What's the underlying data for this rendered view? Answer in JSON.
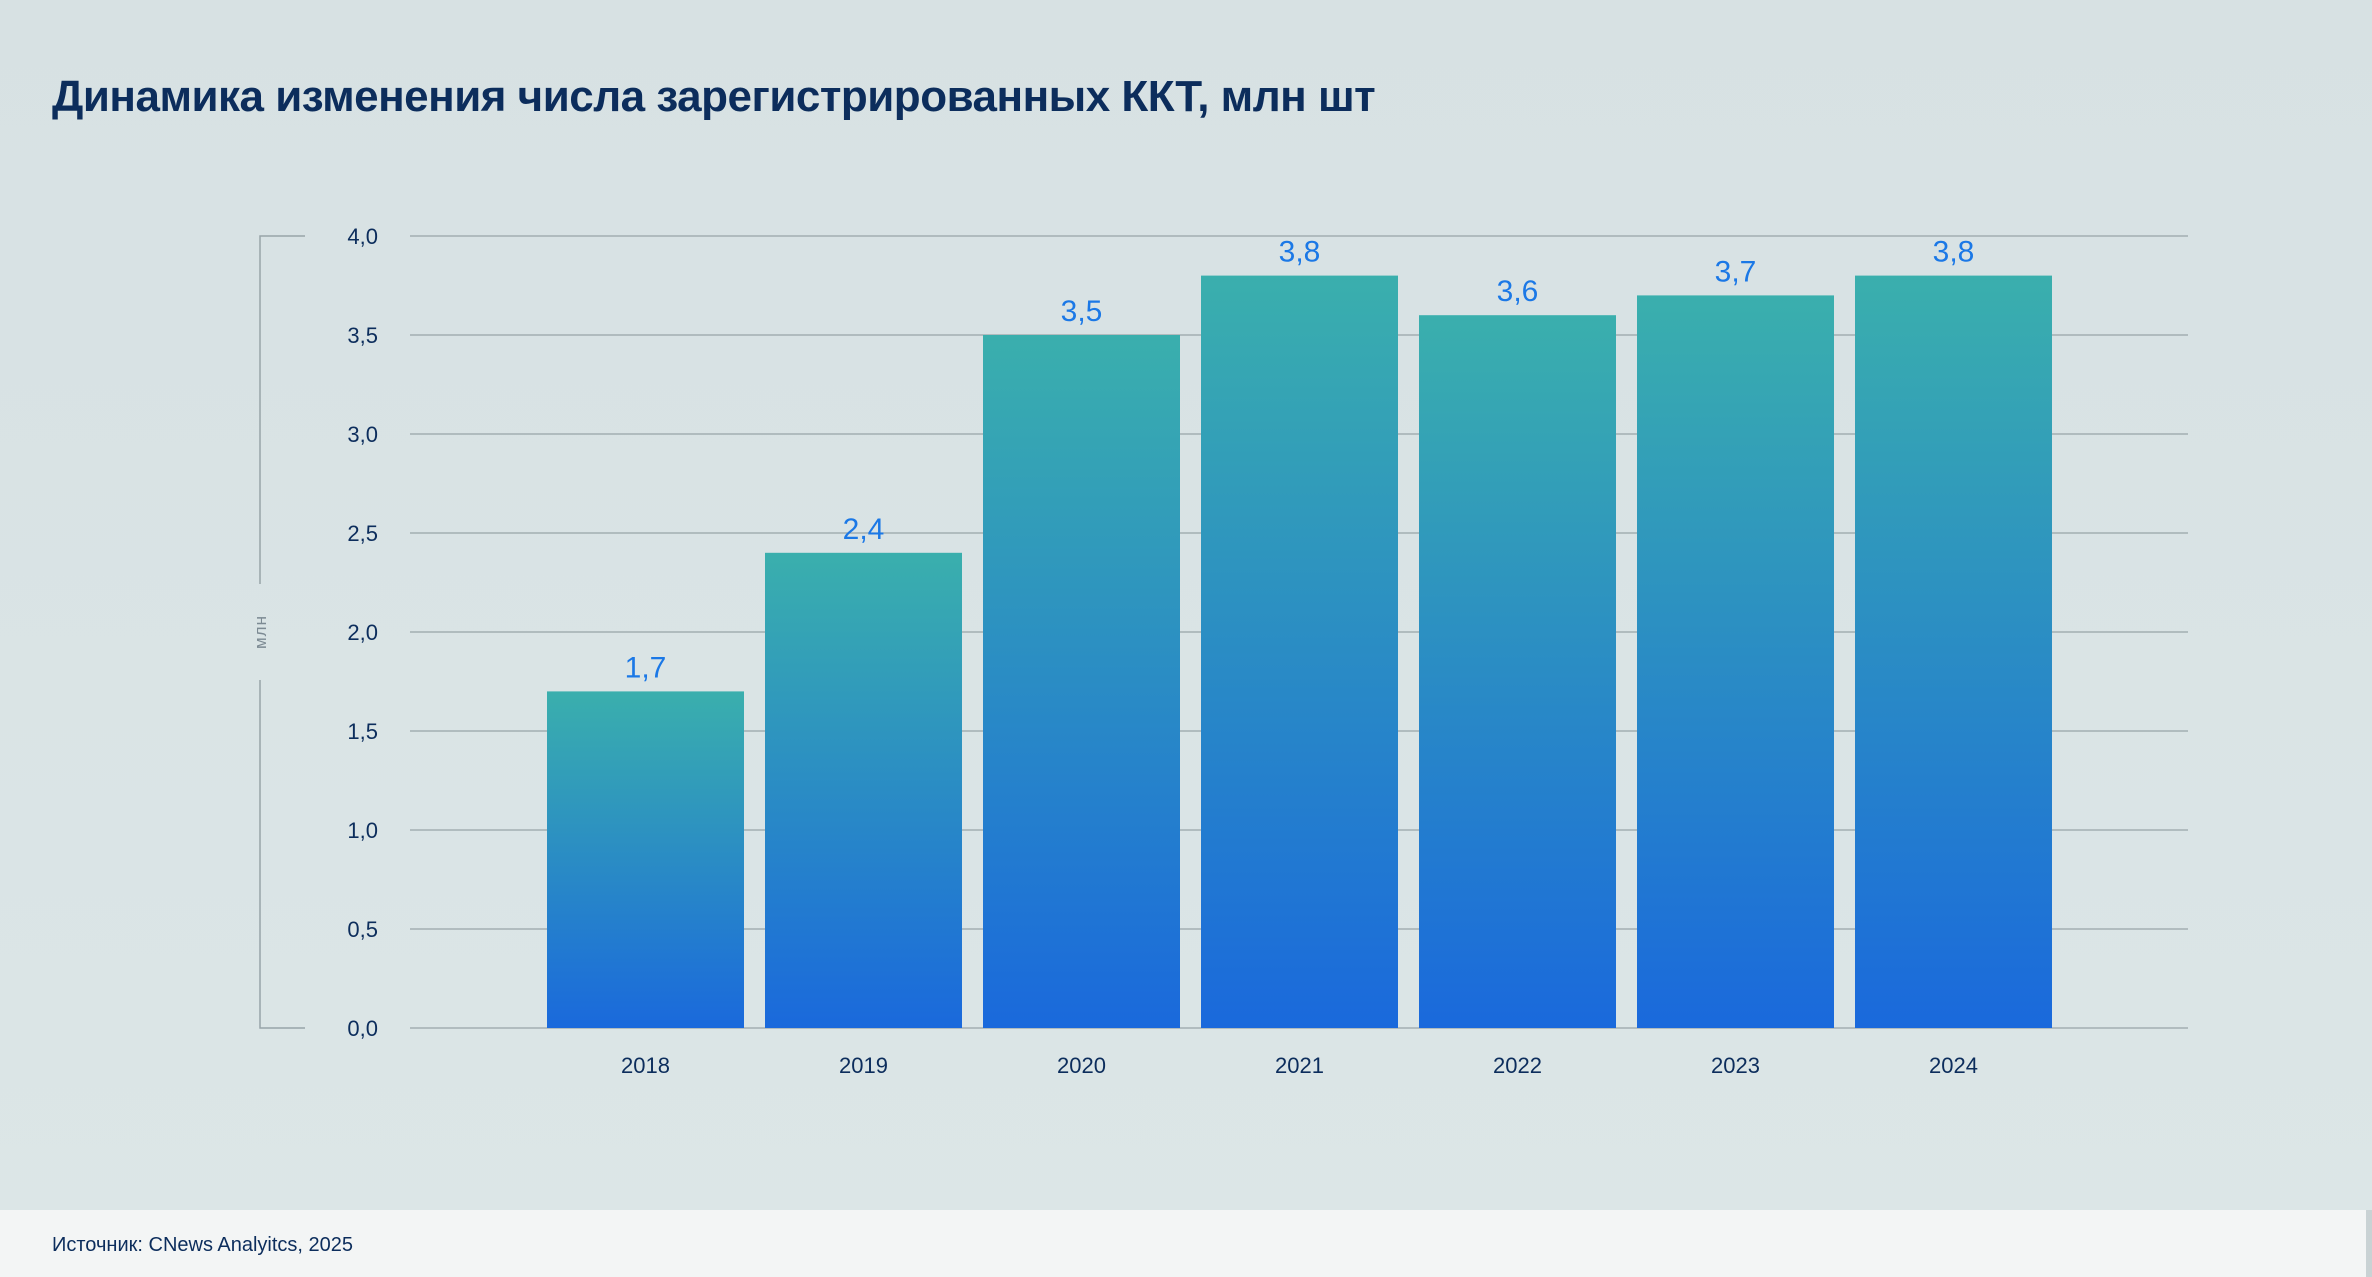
{
  "colors": {
    "bar_top": "#3aafad",
    "bar_bottom": "#1a69dc",
    "value_label": "#1b78e6",
    "grid": "#98a4a8",
    "text": "#0c2d5c"
  },
  "chart_data": {
    "type": "bar",
    "title": "Динамика изменения числа зарегистрированных ККТ, млн шт",
    "ylabel": "млн",
    "xlabel": "",
    "categories": [
      "2018",
      "2019",
      "2020",
      "2021",
      "2022",
      "2023",
      "2024"
    ],
    "values": [
      1.7,
      2.4,
      3.5,
      3.8,
      3.6,
      3.7,
      3.8
    ],
    "value_labels": [
      "1,7",
      "2,4",
      "3,5",
      "3,8",
      "3,6",
      "3,7",
      "3,8"
    ],
    "y_ticks": [
      0,
      0.5,
      1,
      1.5,
      2,
      2.5,
      3,
      3.5,
      4
    ],
    "y_tick_labels": [
      "0,0",
      "0,5",
      "1,0",
      "1,5",
      "2,0",
      "2,5",
      "3,0",
      "3,5",
      "4,0"
    ],
    "ylim": [
      0,
      4
    ],
    "grid": true,
    "legend": "none"
  },
  "footer": {
    "source": "Источник: CNews Analyitcs, 2025"
  }
}
